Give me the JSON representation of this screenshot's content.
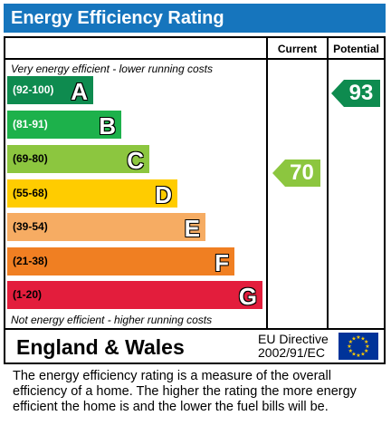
{
  "header": {
    "title": "Energy Efficiency Rating"
  },
  "columns": {
    "current": "Current",
    "potential": "Potential"
  },
  "notes": {
    "top": "Very energy efficient - lower running costs",
    "bottom": "Not energy efficient - higher running costs"
  },
  "bands": [
    {
      "range": "(92-100)",
      "letter": "A",
      "color": "#0e8b4f",
      "range_color": "#ffffff"
    },
    {
      "range": "(81-91)",
      "letter": "B",
      "color": "#1db14b",
      "range_color": "#ffffff"
    },
    {
      "range": "(69-80)",
      "letter": "C",
      "color": "#8cc63f",
      "range_color": "#000000"
    },
    {
      "range": "(55-68)",
      "letter": "D",
      "color": "#ffcc00",
      "range_color": "#000000"
    },
    {
      "range": "(39-54)",
      "letter": "E",
      "color": "#f6ac63",
      "range_color": "#000000"
    },
    {
      "range": "(21-38)",
      "letter": "F",
      "color": "#f07f22",
      "range_color": "#000000"
    },
    {
      "range": "(1-20)",
      "letter": "G",
      "color": "#e31d3c",
      "range_color": "#000000"
    }
  ],
  "ratings": {
    "current": {
      "value": "70",
      "color": "#8cc63f"
    },
    "potential": {
      "value": "93",
      "color": "#0e8b4f"
    }
  },
  "footer": {
    "region": "England & Wales",
    "directive_line1": "EU Directive",
    "directive_line2": "2002/91/EC",
    "flag_icon": "eu-flag-icon"
  },
  "description": "The energy efficiency rating is a measure of the overall efficiency of a home.  The higher the rating the more energy efficient the home is and the lower the fuel bills will be."
}
